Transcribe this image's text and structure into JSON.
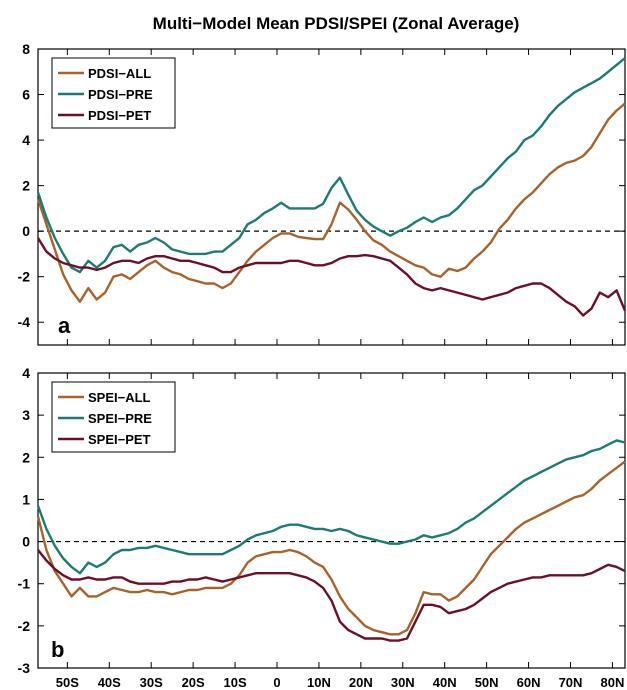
{
  "title": "Multi−Model Mean PDSI/SPEI (Zonal Average)",
  "colors": {
    "all": "#a8622c",
    "pre": "#1e7b72",
    "pet": "#6b1028",
    "axis": "#000000"
  },
  "x_tick_labels": [
    "50S",
    "40S",
    "30S",
    "20S",
    "10S",
    "0",
    "10N",
    "20N",
    "30N",
    "40N",
    "50N",
    "60N",
    "70N",
    "80N"
  ],
  "chart_data": [
    {
      "type": "line",
      "panel_label": "a",
      "ylim": [
        -5,
        8
      ],
      "xlim": [
        -57,
        83
      ],
      "yticks": [
        -4,
        -2,
        0,
        2,
        4,
        6,
        8
      ],
      "xticks": [
        -50,
        -40,
        -30,
        -20,
        -10,
        0,
        10,
        20,
        30,
        40,
        50,
        60,
        70,
        80
      ],
      "zero_line": "dashed",
      "legend_position": "top-left",
      "x": [
        -57,
        -55,
        -53,
        -51,
        -49,
        -47,
        -45,
        -43,
        -41,
        -39,
        -37,
        -35,
        -33,
        -31,
        -29,
        -27,
        -25,
        -23,
        -21,
        -19,
        -17,
        -15,
        -13,
        -11,
        -9,
        -7,
        -5,
        -3,
        -1,
        1,
        3,
        5,
        7,
        9,
        11,
        13,
        15,
        17,
        19,
        21,
        23,
        25,
        27,
        29,
        31,
        33,
        35,
        37,
        39,
        41,
        43,
        45,
        47,
        49,
        51,
        53,
        55,
        57,
        59,
        61,
        63,
        65,
        67,
        69,
        71,
        73,
        75,
        77,
        79,
        81,
        83
      ],
      "series": [
        {
          "name": "PDSI−ALL",
          "color_key": "all",
          "values": [
            1.4,
            0.3,
            -0.8,
            -1.9,
            -2.6,
            -3.1,
            -2.5,
            -3.0,
            -2.7,
            -2.0,
            -1.9,
            -2.1,
            -1.8,
            -1.5,
            -1.3,
            -1.6,
            -1.8,
            -1.9,
            -2.1,
            -2.2,
            -2.3,
            -2.3,
            -2.5,
            -2.3,
            -1.8,
            -1.3,
            -0.9,
            -0.6,
            -0.3,
            -0.1,
            -0.1,
            -0.25,
            -0.3,
            -0.35,
            -0.35,
            0.3,
            1.25,
            0.95,
            0.5,
            0.0,
            -0.4,
            -0.6,
            -0.9,
            -1.1,
            -1.3,
            -1.5,
            -1.6,
            -1.9,
            -2.0,
            -1.65,
            -1.75,
            -1.6,
            -1.2,
            -0.9,
            -0.5,
            0.1,
            0.5,
            1.0,
            1.4,
            1.7,
            2.1,
            2.5,
            2.8,
            3.0,
            3.1,
            3.3,
            3.7,
            4.3,
            4.9,
            5.3,
            5.6
          ]
        },
        {
          "name": "PDSI−PRE",
          "color_key": "pre",
          "values": [
            1.7,
            0.6,
            -0.3,
            -1.0,
            -1.6,
            -1.8,
            -1.3,
            -1.6,
            -1.3,
            -0.7,
            -0.6,
            -0.9,
            -0.6,
            -0.5,
            -0.3,
            -0.5,
            -0.8,
            -0.9,
            -1.0,
            -1.0,
            -1.0,
            -0.9,
            -0.9,
            -0.6,
            -0.3,
            0.3,
            0.5,
            0.8,
            1.0,
            1.25,
            1.0,
            1.0,
            1.0,
            1.0,
            1.2,
            1.9,
            2.35,
            1.6,
            0.9,
            0.5,
            0.2,
            0.0,
            -0.2,
            0.0,
            0.15,
            0.4,
            0.6,
            0.4,
            0.6,
            0.7,
            1.0,
            1.4,
            1.8,
            2.0,
            2.4,
            2.8,
            3.2,
            3.5,
            4.0,
            4.2,
            4.6,
            5.1,
            5.5,
            5.8,
            6.1,
            6.3,
            6.5,
            6.7,
            7.0,
            7.3,
            7.6
          ]
        },
        {
          "name": "PDSI−PET",
          "color_key": "pet",
          "values": [
            -0.3,
            -0.9,
            -1.2,
            -1.4,
            -1.5,
            -1.6,
            -1.6,
            -1.7,
            -1.6,
            -1.4,
            -1.3,
            -1.3,
            -1.4,
            -1.2,
            -1.1,
            -1.1,
            -1.2,
            -1.3,
            -1.3,
            -1.4,
            -1.5,
            -1.6,
            -1.8,
            -1.8,
            -1.6,
            -1.5,
            -1.4,
            -1.4,
            -1.4,
            -1.4,
            -1.3,
            -1.3,
            -1.4,
            -1.5,
            -1.5,
            -1.4,
            -1.2,
            -1.1,
            -1.1,
            -1.05,
            -1.1,
            -1.2,
            -1.3,
            -1.6,
            -1.9,
            -2.3,
            -2.5,
            -2.6,
            -2.5,
            -2.6,
            -2.7,
            -2.8,
            -2.9,
            -3.0,
            -2.9,
            -2.8,
            -2.7,
            -2.5,
            -2.4,
            -2.3,
            -2.3,
            -2.5,
            -2.8,
            -3.1,
            -3.3,
            -3.7,
            -3.4,
            -2.7,
            -2.9,
            -2.6,
            -3.5
          ]
        }
      ]
    },
    {
      "type": "line",
      "panel_label": "b",
      "ylim": [
        -3,
        4
      ],
      "xlim": [
        -57,
        83
      ],
      "yticks": [
        -3,
        -2,
        -1,
        0,
        1,
        2,
        3,
        4
      ],
      "xticks": [
        -50,
        -40,
        -30,
        -20,
        -10,
        0,
        10,
        20,
        30,
        40,
        50,
        60,
        70,
        80
      ],
      "zero_line": "dashed",
      "legend_position": "top-left",
      "x": [
        -57,
        -55,
        -53,
        -51,
        -49,
        -47,
        -45,
        -43,
        -41,
        -39,
        -37,
        -35,
        -33,
        -31,
        -29,
        -27,
        -25,
        -23,
        -21,
        -19,
        -17,
        -15,
        -13,
        -11,
        -9,
        -7,
        -5,
        -3,
        -1,
        1,
        3,
        5,
        7,
        9,
        11,
        13,
        15,
        17,
        19,
        21,
        23,
        25,
        27,
        29,
        31,
        33,
        35,
        37,
        39,
        41,
        43,
        45,
        47,
        49,
        51,
        53,
        55,
        57,
        59,
        61,
        63,
        65,
        67,
        69,
        71,
        73,
        75,
        77,
        79,
        81,
        83
      ],
      "series": [
        {
          "name": "SPEI−ALL",
          "color_key": "all",
          "values": [
            0.6,
            -0.2,
            -0.7,
            -1.0,
            -1.3,
            -1.1,
            -1.3,
            -1.3,
            -1.2,
            -1.1,
            -1.15,
            -1.2,
            -1.2,
            -1.15,
            -1.2,
            -1.2,
            -1.25,
            -1.2,
            -1.15,
            -1.15,
            -1.1,
            -1.1,
            -1.1,
            -1.0,
            -0.8,
            -0.5,
            -0.35,
            -0.3,
            -0.25,
            -0.25,
            -0.2,
            -0.25,
            -0.35,
            -0.5,
            -0.6,
            -0.9,
            -1.3,
            -1.6,
            -1.8,
            -2.0,
            -2.1,
            -2.15,
            -2.2,
            -2.2,
            -2.1,
            -1.7,
            -1.2,
            -1.25,
            -1.25,
            -1.4,
            -1.3,
            -1.1,
            -0.9,
            -0.6,
            -0.3,
            -0.1,
            0.1,
            0.3,
            0.45,
            0.55,
            0.65,
            0.75,
            0.85,
            0.95,
            1.05,
            1.1,
            1.25,
            1.45,
            1.6,
            1.75,
            1.9
          ]
        },
        {
          "name": "SPEI−PRE",
          "color_key": "pre",
          "values": [
            0.85,
            0.3,
            -0.1,
            -0.4,
            -0.6,
            -0.75,
            -0.5,
            -0.6,
            -0.5,
            -0.3,
            -0.2,
            -0.2,
            -0.15,
            -0.15,
            -0.1,
            -0.15,
            -0.2,
            -0.25,
            -0.3,
            -0.3,
            -0.3,
            -0.3,
            -0.3,
            -0.2,
            -0.1,
            0.05,
            0.15,
            0.2,
            0.25,
            0.35,
            0.4,
            0.4,
            0.35,
            0.3,
            0.3,
            0.25,
            0.3,
            0.25,
            0.15,
            0.1,
            0.05,
            0.0,
            -0.05,
            -0.05,
            0.0,
            0.05,
            0.15,
            0.1,
            0.15,
            0.2,
            0.3,
            0.45,
            0.55,
            0.7,
            0.85,
            1.0,
            1.15,
            1.3,
            1.45,
            1.55,
            1.65,
            1.75,
            1.85,
            1.95,
            2.0,
            2.05,
            2.15,
            2.2,
            2.3,
            2.4,
            2.35
          ]
        },
        {
          "name": "SPEI−PET",
          "color_key": "pet",
          "values": [
            -0.2,
            -0.45,
            -0.65,
            -0.8,
            -0.9,
            -0.9,
            -0.85,
            -0.9,
            -0.9,
            -0.85,
            -0.85,
            -0.95,
            -1.0,
            -1.0,
            -1.0,
            -1.0,
            -0.95,
            -0.95,
            -0.9,
            -0.9,
            -0.85,
            -0.9,
            -0.95,
            -0.9,
            -0.85,
            -0.8,
            -0.75,
            -0.75,
            -0.75,
            -0.75,
            -0.75,
            -0.8,
            -0.85,
            -0.95,
            -1.1,
            -1.4,
            -1.9,
            -2.1,
            -2.2,
            -2.3,
            -2.3,
            -2.3,
            -2.35,
            -2.35,
            -2.3,
            -1.9,
            -1.5,
            -1.5,
            -1.55,
            -1.7,
            -1.65,
            -1.6,
            -1.5,
            -1.35,
            -1.2,
            -1.1,
            -1.0,
            -0.95,
            -0.9,
            -0.85,
            -0.85,
            -0.8,
            -0.8,
            -0.8,
            -0.8,
            -0.8,
            -0.75,
            -0.65,
            -0.55,
            -0.6,
            -0.7
          ]
        }
      ]
    }
  ]
}
